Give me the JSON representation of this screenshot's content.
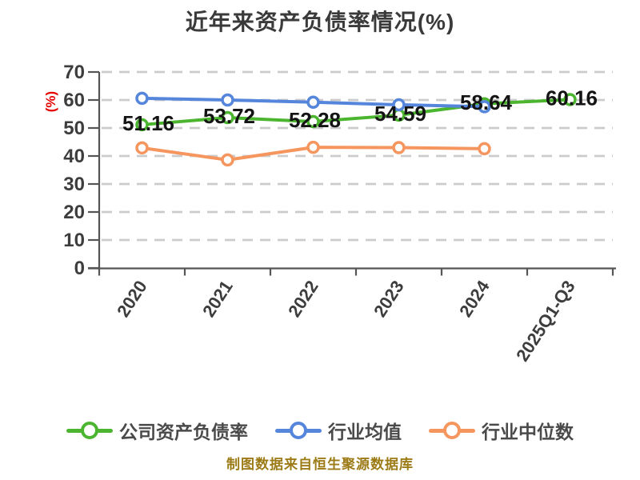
{
  "title": "近年来资产负债率情况(%)",
  "y_axis_unit": "(%)",
  "footer_note": "制图数据来自恒生聚源数据库",
  "colors": {
    "grid": "#cbcbcb",
    "axis": "#555555",
    "axis_text": "#3d3d3d",
    "data_label": "#141414",
    "unit_label": "#e60000",
    "legend_text": "#4a4a4a",
    "footer_text": "#9c7b17",
    "background": "#ffffff"
  },
  "chart_data": {
    "type": "line",
    "title": "近年来资产负债率情况(%)",
    "categories": [
      "2020",
      "2021",
      "2022",
      "2023",
      "2024",
      "2025Q1-Q3"
    ],
    "y_ticks": [
      0,
      10,
      20,
      30,
      40,
      50,
      60,
      70
    ],
    "ylim": [
      0,
      70
    ],
    "grid": "dashed-horizontal",
    "legend_position": "bottom",
    "series": [
      {
        "key": "company-debt-ratio",
        "name": "公司资产负债率",
        "color": "#4cb52f",
        "values": [
          51.16,
          53.72,
          52.28,
          54.59,
          58.64,
          60.16
        ],
        "labels": [
          "51.16",
          "53.72",
          "52.28",
          "54.59",
          "58.64",
          "60.16"
        ],
        "labels_shown": true
      },
      {
        "key": "industry-mean",
        "name": "行业均值",
        "color": "#5586dc",
        "values": [
          60.6,
          60.0,
          59.2,
          58.3,
          57.6,
          null
        ],
        "labels_shown": false
      },
      {
        "key": "industry-median",
        "name": "行业中位数",
        "color": "#f6965f",
        "values": [
          42.9,
          38.6,
          43.1,
          43.0,
          42.6,
          null
        ],
        "labels_shown": false
      }
    ]
  }
}
